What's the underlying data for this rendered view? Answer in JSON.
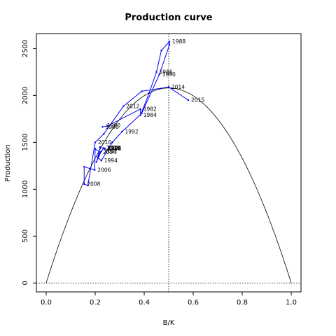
{
  "chart_data": {
    "type": "line",
    "title": "Production curve",
    "xlabel": "B/K",
    "ylabel": "Production",
    "xlim": [
      -0.04,
      1.04
    ],
    "ylim": [
      -95,
      2660
    ],
    "xticks": [
      "0.0",
      "0.2",
      "0.4",
      "0.6",
      "0.8",
      "1.0"
    ],
    "yticks": [
      "0",
      "500",
      "1000",
      "1500",
      "2000",
      "2500"
    ],
    "grid": false,
    "curve": {
      "K": 1,
      "peak_x": 0.5,
      "peak_y": 2080,
      "x": [
        0.0,
        0.1,
        0.2,
        0.3,
        0.4,
        0.5,
        0.6,
        0.7,
        0.8,
        0.9,
        1.0
      ],
      "y": [
        0,
        749,
        1331,
        1747,
        1997,
        2080,
        1997,
        1747,
        1331,
        749,
        0
      ]
    },
    "reference_lines": {
      "hline_y": 0,
      "vline_x": 0.5
    },
    "series": [
      {
        "points": [
          {
            "x": 0.23,
            "y": 1665,
            "label": "1980"
          },
          {
            "x": 0.25,
            "y": 1675,
            "label": ""
          },
          {
            "x": 0.385,
            "y": 1855,
            "label": "1982"
          },
          {
            "x": 0.385,
            "y": 1790,
            "label": "1984"
          },
          {
            "x": 0.42,
            "y": 2025,
            "label": ""
          },
          {
            "x": 0.45,
            "y": 2250,
            "label": "1986"
          },
          {
            "x": 0.47,
            "y": 2480,
            "label": ""
          },
          {
            "x": 0.503,
            "y": 2575,
            "label": "1988"
          },
          {
            "x": 0.503,
            "y": 2540,
            "label": ""
          },
          {
            "x": 0.462,
            "y": 2225,
            "label": "1990"
          },
          {
            "x": 0.39,
            "y": 1810,
            "label": ""
          },
          {
            "x": 0.31,
            "y": 1615,
            "label": "1992"
          },
          {
            "x": 0.27,
            "y": 1500,
            "label": ""
          },
          {
            "x": 0.225,
            "y": 1305,
            "label": "1994"
          },
          {
            "x": 0.21,
            "y": 1340,
            "label": ""
          },
          {
            "x": 0.22,
            "y": 1450,
            "label": ""
          },
          {
            "x": 0.24,
            "y": 1430,
            "label": "1996"
          },
          {
            "x": 0.235,
            "y": 1440,
            "label": "1998"
          },
          {
            "x": 0.235,
            "y": 1440,
            "label": "2000"
          },
          {
            "x": 0.225,
            "y": 1405,
            "label": "2002"
          },
          {
            "x": 0.205,
            "y": 1290,
            "label": ""
          },
          {
            "x": 0.22,
            "y": 1395,
            "label": "2004"
          },
          {
            "x": 0.2,
            "y": 1430,
            "label": ""
          },
          {
            "x": 0.198,
            "y": 1205,
            "label": "2006"
          },
          {
            "x": 0.155,
            "y": 1240,
            "label": ""
          },
          {
            "x": 0.155,
            "y": 1055,
            "label": "2008"
          },
          {
            "x": 0.17,
            "y": 1040,
            "label": ""
          },
          {
            "x": 0.2,
            "y": 1500,
            "label": "2010"
          },
          {
            "x": 0.235,
            "y": 1590,
            "label": ""
          },
          {
            "x": 0.315,
            "y": 1885,
            "label": "2012"
          },
          {
            "x": 0.39,
            "y": 2045,
            "label": ""
          },
          {
            "x": 0.5,
            "y": 2090,
            "label": "2014"
          },
          {
            "x": 0.58,
            "y": 1950,
            "label": "2015"
          }
        ],
        "color": "#0000ff"
      }
    ],
    "extra_labels": [
      {
        "x": 0.237,
        "y": 1680,
        "label": "1980"
      },
      {
        "x": 0.24,
        "y": 1440,
        "label": "1990"
      }
    ]
  }
}
